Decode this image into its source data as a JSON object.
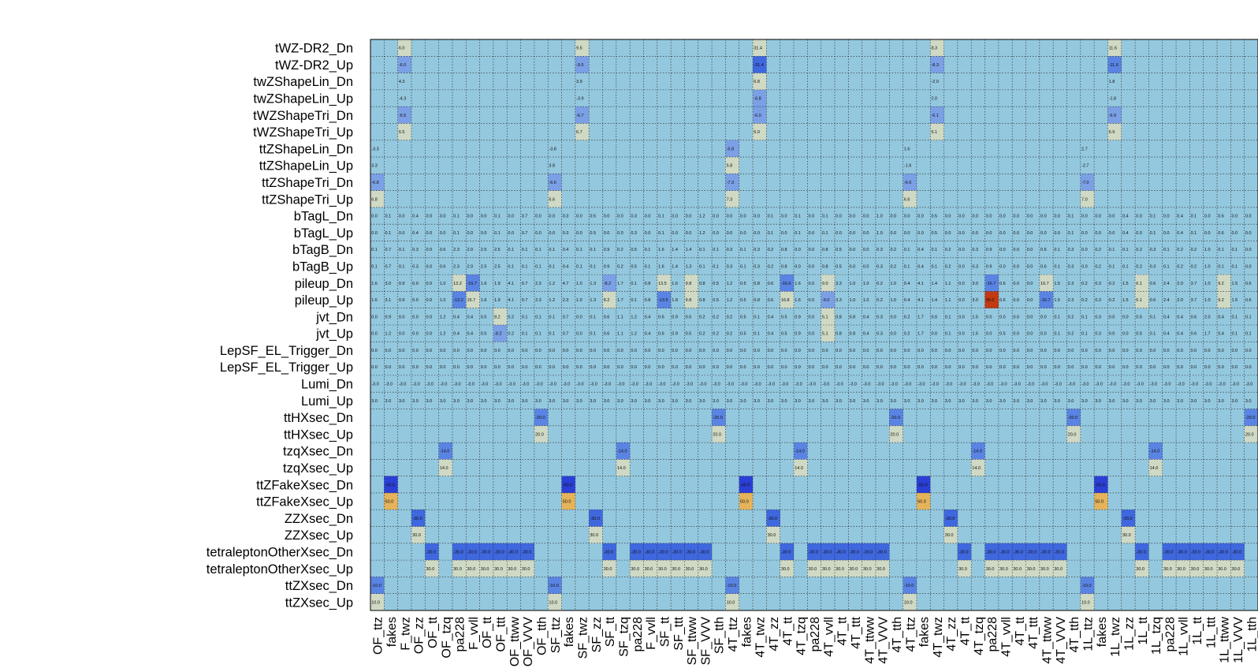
{
  "chart_data": {
    "type": "heatmap",
    "title": "",
    "xlabel": "",
    "ylabel": "",
    "value_format": "1 decimal",
    "color_scale": {
      "zero": "#94c8de",
      "small_positive": "#cfd9c4",
      "large_positive": "#e5b35a",
      "max_positive": "#c23a12",
      "small_negative": "#7ba0e6",
      "large_negative": "#2b3fd6"
    },
    "rows": [
      "tWZ-DR2_Dn",
      "tWZ-DR2_Up",
      "twZShapeLin_Dn",
      "twZShapeLin_Up",
      "tWZShapeTri_Dn",
      "tWZShapeTri_Up",
      "ttZShapeLin_Dn",
      "ttZShapeLin_Up",
      "ttZShapeTri_Dn",
      "ttZShapeTri_Up",
      "bTagL_Dn",
      "bTagL_Up",
      "bTagB_Dn",
      "bTagB_Up",
      "pileup_Dn",
      "pileup_Up",
      "jvt_Dn",
      "jvt_Up",
      "LepSF_EL_Trigger_Dn",
      "LepSF_EL_Trigger_Up",
      "Lumi_Dn",
      "Lumi_Up",
      "ttHXsec_Dn",
      "ttHXsec_Up",
      "tzqXsec_Dn",
      "tzqXsec_Up",
      "ttZFakeXsec_Dn",
      "ttZFakeXsec_Up",
      "ZZXsec_Dn",
      "ZZXsec_Up",
      "tetraleptonOtherXsec_Dn",
      "tetraleptonOtherXsec_Up",
      "ttZXsec_Dn",
      "ttZXsec_Up"
    ],
    "columns": [
      "OF_ttz",
      "fakes",
      "F_twz",
      "OF_zz",
      "OF_tt",
      "OF_tzq",
      "pa228",
      "F_vvll",
      "OF_tt",
      "OF_ttt",
      "OF_ttww",
      "OF_VVV",
      "OF_tth",
      "SF_ttz",
      "fakes",
      "SF_twz",
      "SF_zz",
      "SF_tt",
      "SF_tzq",
      "pa228",
      "F_vvll",
      "SF_tt",
      "SF_ttt",
      "SF_ttww",
      "SF_VVV",
      "SF_tth",
      "4T_ttz",
      "fakes",
      "4T_twz",
      "4T_zz",
      "4T_tt",
      "4T_tzq",
      "pa228",
      "4T_vvll",
      "4T_tt",
      "4T_ttt",
      "4T_ttww",
      "4T_VVV",
      "4T_tth",
      "4T_ttz",
      "fakes",
      "4T_twz",
      "4T_zz",
      "4T_tt",
      "4T_tzq",
      "pa228",
      "4T_vvll",
      "4T_tt",
      "4T_ttt",
      "4T_ttww",
      "4T_VVV",
      "4T_tth",
      "1L_ttz",
      "fakes",
      "1L_twz",
      "1L_zz",
      "1L_tt",
      "1L_tzq",
      "pa228",
      "1L_vvll",
      "1L_tt",
      "1L_ttt",
      "1L_ttww",
      "1L_VVV",
      "1L_tth"
    ],
    "row_patterns": {
      "tWZ-DR2_Dn": {
        "2": 6.0,
        "15": 9.5,
        "28": 31.4,
        "41": 8.3,
        "54": 11.6
      },
      "tWZ-DR2_Up": {
        "2": -6.0,
        "15": -9.5,
        "28": -31.4,
        "41": -8.3,
        "54": -11.6
      },
      "twZShapeLin_Dn": {
        "2": 4.3,
        "15": 3.9,
        "28": 6.8,
        "41": -2.0,
        "54": 1.8
      },
      "twZShapeLin_Up": {
        "2": -4.3,
        "15": -3.9,
        "28": -6.8,
        "41": 2.0,
        "54": -1.8
      },
      "tWZShapeTri_Dn": {
        "2": -6.5,
        "15": -6.7,
        "28": -6.0,
        "41": -6.1,
        "54": -6.9
      },
      "tWZShapeTri_Up": {
        "2": 6.5,
        "15": 6.7,
        "28": 6.0,
        "41": 6.1,
        "54": 6.9
      },
      "ttZShapeLin_Dn": {
        "0": -3.3,
        "13": -3.8,
        "26": -5.8,
        "39": 1.6,
        "52": 2.7
      },
      "ttZShapeLin_Up": {
        "0": 3.3,
        "13": 3.8,
        "26": 5.8,
        "39": -1.6,
        "52": -2.7
      },
      "ttZShapeTri_Dn": {
        "0": -6.8,
        "13": -6.6,
        "26": -7.3,
        "39": -6.6,
        "52": -7.0
      },
      "ttZShapeTri_Up": {
        "0": 6.8,
        "13": 6.6,
        "26": 7.3,
        "39": 6.6,
        "52": 7.0
      },
      "ttHXsec_Dn": {
        "12": -20.0,
        "25": -20.0,
        "38": -20.0,
        "51": -20.0,
        "64": -20.0
      },
      "ttHXsec_Up": {
        "12": 20.0,
        "25": 20.0,
        "38": 20.0,
        "51": 20.0,
        "64": 20.0
      },
      "tzqXsec_Dn": {
        "5": -14.0,
        "18": -14.0,
        "31": -14.0,
        "44": -14.0,
        "57": -14.0
      },
      "tzqXsec_Up": {
        "5": 14.0,
        "18": 14.0,
        "31": 14.0,
        "44": 14.0,
        "57": 14.0
      },
      "ttZFakeXsec_Dn": {
        "1": -50.0,
        "14": -50.0,
        "27": -50.0,
        "40": -50.0,
        "53": -50.0
      },
      "ttZFakeXsec_Up": {
        "1": 50.0,
        "14": 50.0,
        "27": 50.0,
        "40": 50.0,
        "53": 50.0
      },
      "ZZXsec_Dn": {
        "3": -30.0,
        "16": -30.0,
        "29": -30.0,
        "42": -30.0,
        "55": -30.0
      },
      "ZZXsec_Up": {
        "3": 30.0,
        "16": 30.0,
        "29": 30.0,
        "42": 30.0,
        "55": 30.0
      },
      "tetraleptonOtherXsec_Dn": {
        "4": -30.0,
        "6": -30.0,
        "7": -30.0,
        "8": -30.0,
        "9": -30.0,
        "10": -30.0,
        "11": -30.0,
        "17": -30.0,
        "19": -30.0,
        "20": -30.0,
        "21": -30.0,
        "22": -30.0,
        "23": -30.0,
        "24": -30.0,
        "30": -30.0,
        "32": -30.0,
        "33": -30.0,
        "34": -30.0,
        "35": -30.0,
        "36": -30.0,
        "37": -30.0,
        "43": -30.0,
        "45": -30.0,
        "46": -30.0,
        "47": -30.0,
        "48": -30.0,
        "49": -30.0,
        "50": -30.0,
        "56": -30.0,
        "58": -30.0,
        "59": -30.0,
        "60": -30.0,
        "61": -30.0,
        "62": -30.0,
        "63": -30.0
      },
      "tetraleptonOtherXsec_Up": {
        "4": 30.0,
        "6": 30.0,
        "7": 30.0,
        "8": 30.0,
        "9": 30.0,
        "10": 30.0,
        "11": 30.0,
        "17": 30.0,
        "19": 30.0,
        "20": 30.0,
        "21": 30.0,
        "22": 30.0,
        "23": 30.0,
        "24": 30.0,
        "30": 30.0,
        "32": 30.0,
        "33": 30.0,
        "34": 30.0,
        "35": 30.0,
        "36": 30.0,
        "37": 30.0,
        "43": 30.0,
        "45": 30.0,
        "46": 30.0,
        "47": 30.0,
        "48": 30.0,
        "49": 30.0,
        "50": 30.0,
        "56": 30.0,
        "58": 30.0,
        "59": 30.0,
        "60": 30.0,
        "61": 30.0,
        "62": 30.0,
        "63": 30.0
      },
      "ttZXsec_Dn": {
        "0": -10.0,
        "13": -10.0,
        "26": -10.0,
        "39": -10.0,
        "52": -10.0
      },
      "ttZXsec_Up": {
        "0": 10.0,
        "13": 10.0,
        "26": 10.0,
        "39": 10.0,
        "52": 10.0
      }
    },
    "full_rows": {
      "Lumi_Dn": -3.0,
      "Lumi_Up": 3.0,
      "LepSF_EL_Trigger_Dn": 0.0,
      "LepSF_EL_Trigger_Up": 0.0
    },
    "dense_rows": {
      "bTagL_Dn": [
        0.0,
        0.1,
        0.0,
        0.4,
        0.0,
        0.0,
        0.1,
        0.0,
        0.0,
        0.1,
        0.0,
        0.7,
        0.0,
        0.0,
        0.3,
        0.0,
        0.5,
        0.0,
        0.0,
        0.3,
        0.0,
        0.1,
        0.0,
        0.0,
        1.2,
        0.0,
        0.0,
        0.0,
        0.0,
        0.1,
        0.0,
        0.1,
        0.0,
        0.1,
        0.0,
        0.0,
        0.0,
        1.0,
        0.0,
        0.0,
        0.0,
        0.5,
        0.0,
        0.0,
        0.0,
        0.0,
        0.0,
        0.0,
        0.0,
        0.0,
        0.0,
        0.1,
        0.0,
        0.0,
        0.0,
        0.4,
        0.0,
        0.1,
        0.0,
        0.4,
        0.1,
        0.0,
        0.6,
        0.0,
        0.0
      ],
      "bTagL_Up": [
        0.0,
        0.1,
        0.0,
        0.4,
        0.0,
        0.0,
        0.1,
        0.0,
        0.0,
        0.1,
        0.0,
        0.7,
        0.0,
        0.0,
        0.3,
        0.0,
        0.5,
        0.0,
        0.0,
        0.3,
        0.0,
        0.1,
        0.0,
        0.0,
        1.2,
        0.0,
        0.0,
        0.0,
        0.0,
        0.1,
        0.0,
        0.1,
        0.0,
        0.1,
        0.0,
        0.0,
        0.0,
        1.0,
        0.0,
        0.0,
        0.0,
        0.5,
        0.0,
        0.0,
        0.0,
        0.0,
        0.0,
        0.0,
        0.0,
        0.0,
        0.0,
        0.1,
        0.0,
        0.0,
        0.0,
        0.4,
        0.0,
        0.1,
        0.0,
        0.4,
        0.1,
        0.0,
        0.6,
        0.0,
        0.0
      ],
      "bTagB_Dn": [
        0.1,
        0.7,
        0.1,
        0.3,
        0.0,
        0.6,
        2.3,
        2.0,
        2.5,
        2.5,
        0.1,
        0.1,
        0.1,
        0.1,
        0.4,
        0.1,
        0.1,
        0.9,
        0.2,
        0.5,
        0.1,
        1.6,
        1.4,
        1.4,
        0.1,
        0.1,
        0.3,
        0.1,
        0.3,
        0.2,
        0.8,
        0.0,
        0.0,
        0.8,
        0.5,
        0.0,
        0.0,
        0.3,
        0.2,
        0.1,
        0.4,
        0.1,
        0.2,
        0.0,
        0.3,
        0.9,
        0.0,
        0.0,
        0.0,
        0.6,
        0.1,
        0.3,
        0.0,
        0.2,
        0.1,
        0.1,
        0.2,
        0.3,
        0.1,
        0.2,
        0.2,
        1.0,
        0.1,
        0.1,
        0.0
      ],
      "bTagB_Up": [
        0.1,
        0.7,
        0.1,
        0.3,
        0.0,
        0.6,
        2.3,
        2.0,
        2.5,
        2.5,
        0.1,
        0.1,
        0.1,
        0.1,
        0.4,
        0.1,
        0.1,
        0.9,
        0.2,
        0.5,
        0.1,
        1.6,
        1.4,
        1.3,
        0.1,
        0.1,
        0.3,
        0.1,
        0.3,
        0.2,
        0.8,
        0.0,
        0.0,
        0.8,
        0.5,
        0.0,
        0.0,
        0.3,
        0.2,
        0.1,
        0.4,
        0.1,
        0.2,
        0.0,
        0.3,
        0.9,
        0.0,
        0.0,
        0.0,
        0.6,
        0.1,
        0.3,
        0.0,
        0.2,
        0.1,
        0.1,
        0.2,
        0.3,
        0.1,
        0.2,
        0.2,
        1.0,
        0.1,
        0.1,
        0.0
      ],
      "pileup_Dn": [
        1.6,
        3.0,
        0.9,
        0.0,
        0.0,
        1.0,
        13.2,
        -15.7,
        1.6,
        1.9,
        4.1,
        0.7,
        2.3,
        1.2,
        4.7,
        1.0,
        1.3,
        -8.2,
        1.7,
        0.1,
        0.8,
        13.5,
        1.6,
        9.8,
        0.8,
        0.5,
        1.2,
        0.5,
        0.8,
        0.6,
        -16.6,
        1.6,
        0.0,
        9.0,
        3.3,
        1.0,
        1.0,
        0.2,
        1.0,
        0.4,
        4.1,
        1.4,
        1.1,
        0.0,
        3.0,
        -16.7,
        0.6,
        0.0,
        0.0,
        16.7,
        1.5,
        2.3,
        0.2,
        0.3,
        0.2,
        1.5,
        6.1,
        0.6,
        2.4,
        2.0,
        3.7,
        1.0,
        9.2,
        1.5,
        0.6
      ],
      "pileup_Up": [
        1.6,
        3.1,
        0.9,
        0.0,
        0.0,
        1.0,
        -13.2,
        15.7,
        1.6,
        1.9,
        4.1,
        0.7,
        2.3,
        1.2,
        2.3,
        1.0,
        1.3,
        8.2,
        1.7,
        0.1,
        0.8,
        -13.5,
        1.8,
        9.8,
        0.8,
        0.5,
        1.2,
        0.5,
        0.8,
        0.6,
        16.8,
        1.6,
        0.0,
        -9.0,
        3.3,
        1.0,
        1.0,
        0.2,
        1.0,
        0.4,
        4.1,
        1.4,
        1.1,
        0.0,
        3.0,
        99.0,
        0.6,
        0.0,
        0.0,
        -16.7,
        1.5,
        2.3,
        0.2,
        0.3,
        0.2,
        1.5,
        6.1,
        0.6,
        2.4,
        2.0,
        3.7,
        1.0,
        9.2,
        1.5,
        0.6
      ],
      "jvt_Dn": [
        0.0,
        0.9,
        0.0,
        0.0,
        0.0,
        1.2,
        0.4,
        0.4,
        0.5,
        8.2,
        0.2,
        0.1,
        0.1,
        0.1,
        0.7,
        0.0,
        0.1,
        0.6,
        1.1,
        1.2,
        0.4,
        0.6,
        0.9,
        0.5,
        0.2,
        0.2,
        0.2,
        0.5,
        0.1,
        0.4,
        0.5,
        0.9,
        0.0,
        5.1,
        0.8,
        0.8,
        0.4,
        0.3,
        0.0,
        0.2,
        1.7,
        0.0,
        0.1,
        0.0,
        1.5,
        0.0,
        0.0,
        0.0,
        0.0,
        0.0,
        0.1,
        0.2,
        0.1,
        0.3,
        0.0,
        0.0,
        0.5,
        0.1,
        0.4,
        0.4,
        0.6,
        2.0,
        0.4,
        0.1,
        0.1
      ],
      "jvt_Up": [
        0.0,
        1.2,
        0.0,
        0.0,
        0.0,
        1.2,
        0.4,
        0.4,
        0.5,
        -8.2,
        0.2,
        0.1,
        0.1,
        0.1,
        0.7,
        0.0,
        0.1,
        0.6,
        1.1,
        1.2,
        0.4,
        0.6,
        0.9,
        0.5,
        0.2,
        0.2,
        0.2,
        0.5,
        0.1,
        0.4,
        0.5,
        0.9,
        0.0,
        5.1,
        0.8,
        0.8,
        0.4,
        0.3,
        0.0,
        0.2,
        1.7,
        0.0,
        0.1,
        0.0,
        1.5,
        0.0,
        0.5,
        0.0,
        0.0,
        0.0,
        0.1,
        0.2,
        0.1,
        0.3,
        0.0,
        0.0,
        0.5,
        0.1,
        0.4,
        0.4,
        0.6,
        1.7,
        0.4,
        0.1,
        0.1
      ]
    }
  }
}
